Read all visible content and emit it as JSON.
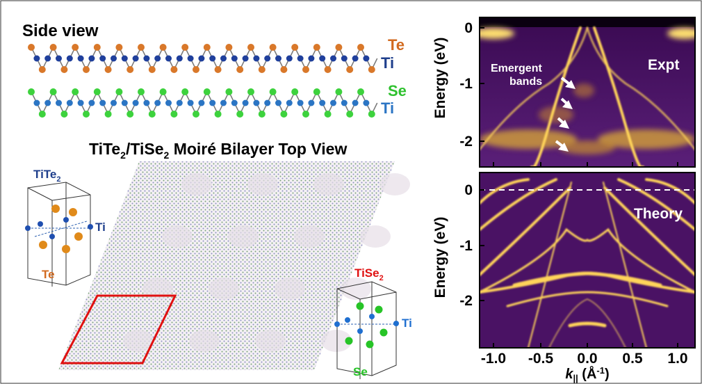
{
  "side_view": {
    "title": "Side view",
    "labels": [
      "Te",
      "Ti",
      "Se",
      "Ti"
    ]
  },
  "top_view": {
    "title": [
      "TiTe",
      "2",
      "/TiSe",
      "2",
      " Moiré Bilayer Top View"
    ]
  },
  "cells": [
    {
      "name": [
        "TiTe",
        "2"
      ],
      "atoms": [
        "Ti",
        "Te"
      ]
    },
    {
      "name": [
        "TiSe",
        "2"
      ],
      "atoms": [
        "Ti",
        "Se"
      ]
    }
  ],
  "panels": [
    {
      "label": "Expt",
      "annotation": [
        "Emergent",
        "bands"
      ],
      "y_axis": "Energy (eV)",
      "yticks": [
        "0",
        "-1",
        "-2"
      ]
    },
    {
      "label": "Theory",
      "y_axis": "Energy (eV)",
      "yticks": [
        "0",
        "-1",
        "-2"
      ]
    }
  ],
  "x_axis": {
    "label": [
      "k",
      "||",
      " (Å",
      "-1",
      ")"
    ],
    "ticks": [
      "-1.0",
      "-0.5",
      "0.0",
      "0.5",
      "1.0"
    ]
  }
}
